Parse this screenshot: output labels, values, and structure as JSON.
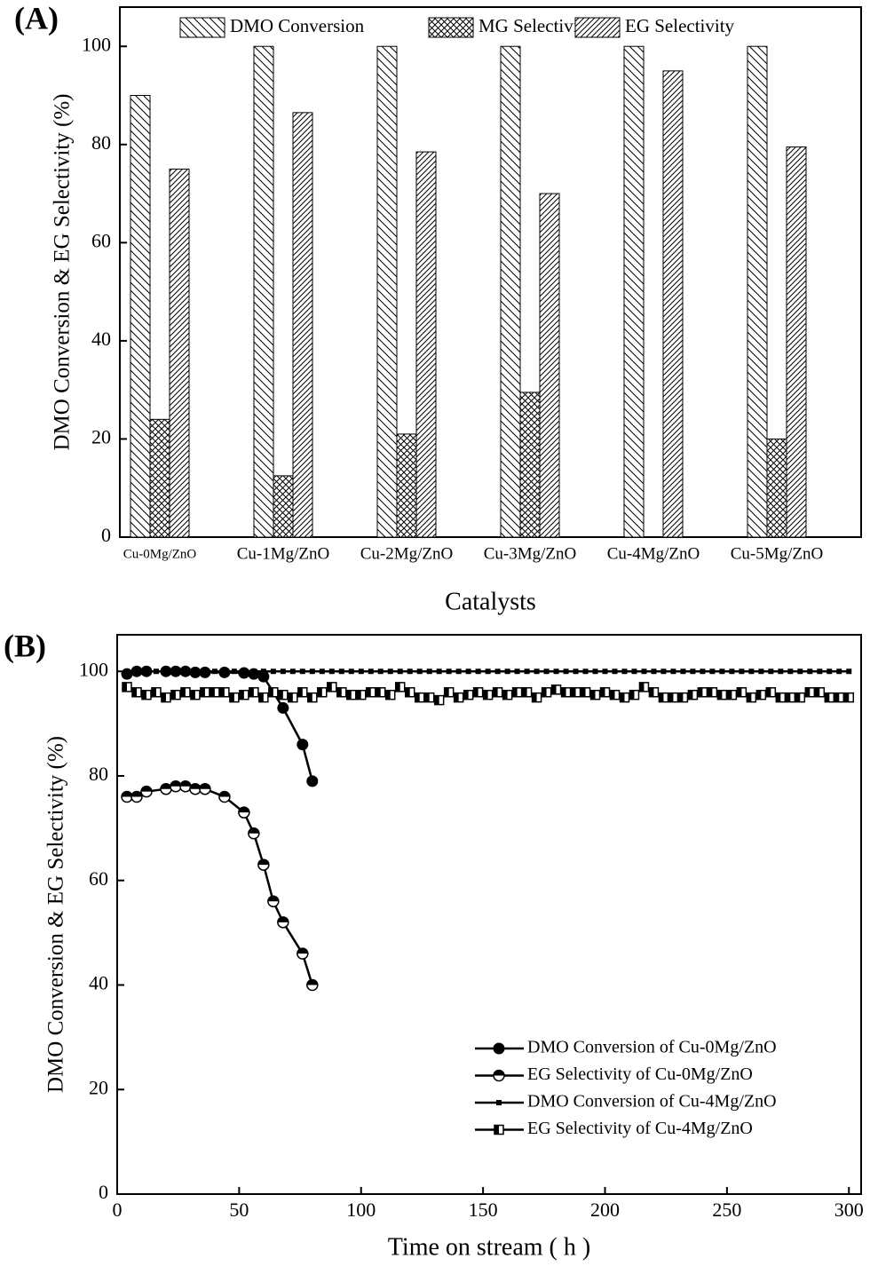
{
  "chart_data": [
    {
      "type": "bar",
      "panel_label": "(A)",
      "ylabel": "DMO Conversion & EG Selectivity (%)",
      "xlabel": "Catalysts",
      "categories": [
        "Cu-0Mg/ZnO",
        "Cu-1Mg/ZnO",
        "Cu-2Mg/ZnO",
        "Cu-3Mg/ZnO",
        "Cu-4Mg/ZnO",
        "Cu-5Mg/ZnO"
      ],
      "series": [
        {
          "name": "DMO Conversion",
          "color": "#000000",
          "hatch": "backslash",
          "values": [
            90,
            100,
            100,
            100,
            100,
            100
          ]
        },
        {
          "name": "MG Selectivity",
          "color": "#000000",
          "hatch": "cross",
          "values": [
            24,
            12.5,
            21,
            29.5,
            null,
            20
          ]
        },
        {
          "name": "EG Selectivity",
          "color": "#000000",
          "hatch": "slash",
          "values": [
            75,
            86.5,
            78.5,
            70,
            95,
            79.5
          ]
        }
      ],
      "ylim": [
        0,
        108
      ],
      "yticks": [
        0,
        20,
        40,
        60,
        80,
        100
      ],
      "legend": "upper center"
    },
    {
      "type": "line",
      "panel_label": "(B)",
      "ylabel": "DMO Conversion & EG Selectivity (%)",
      "xlabel": "Time on stream ( h )",
      "series": [
        {
          "name": "DMO Conversion of Cu-0Mg/ZnO",
          "color": "#000000",
          "marker": "filled-circle",
          "x": [
            4,
            8,
            12,
            20,
            24,
            28,
            32,
            36,
            44,
            52,
            56,
            60,
            68,
            76,
            80
          ],
          "values": [
            99.5,
            100,
            100,
            100,
            100,
            100,
            99.8,
            99.8,
            99.8,
            99.7,
            99.5,
            99,
            93,
            86,
            79
          ]
        },
        {
          "name": "EG Selectivity of Cu-0Mg/ZnO",
          "color": "#000000",
          "marker": "half-circle",
          "x": [
            4,
            8,
            12,
            20,
            24,
            28,
            32,
            36,
            44,
            52,
            56,
            60,
            64,
            68,
            76,
            80
          ],
          "values": [
            76,
            76,
            77,
            77.5,
            78,
            78,
            77.5,
            77.5,
            76,
            73,
            69,
            63,
            56,
            52,
            46,
            40
          ]
        },
        {
          "name": "DMO Conversion of Cu-4Mg/ZnO",
          "color": "#000000",
          "marker": "square",
          "x": [
            4,
            8,
            12,
            16,
            20,
            24,
            28,
            32,
            36,
            40,
            44,
            48,
            52,
            56,
            60,
            64,
            68,
            72,
            76,
            80,
            84,
            88,
            92,
            96,
            100,
            104,
            108,
            112,
            116,
            120,
            124,
            128,
            132,
            136,
            140,
            144,
            148,
            152,
            156,
            160,
            164,
            168,
            172,
            176,
            180,
            184,
            188,
            192,
            196,
            200,
            204,
            208,
            212,
            216,
            220,
            224,
            228,
            232,
            236,
            240,
            244,
            248,
            252,
            256,
            260,
            264,
            268,
            272,
            276,
            280,
            284,
            288,
            292,
            296,
            300
          ],
          "values": [
            100,
            100,
            100,
            100,
            100,
            100,
            100,
            100,
            100,
            100,
            100,
            100,
            100,
            100,
            100,
            100,
            100,
            100,
            100,
            100,
            100,
            100,
            100,
            100,
            100,
            100,
            100,
            100,
            100,
            100,
            100,
            100,
            100,
            100,
            100,
            100,
            100,
            100,
            100,
            100,
            100,
            100,
            100,
            100,
            100,
            100,
            100,
            100,
            100,
            100,
            100,
            100,
            100,
            100,
            100,
            100,
            100,
            100,
            100,
            100,
            100,
            100,
            100,
            100,
            100,
            100,
            100,
            100,
            100,
            100,
            100,
            100,
            100,
            100,
            100
          ]
        },
        {
          "name": "EG Selectivity of Cu-4Mg/ZnO",
          "color": "#000000",
          "marker": "half-square",
          "x": [
            4,
            8,
            12,
            16,
            20,
            24,
            28,
            32,
            36,
            40,
            44,
            48,
            52,
            56,
            60,
            64,
            68,
            72,
            76,
            80,
            84,
            88,
            92,
            96,
            100,
            104,
            108,
            112,
            116,
            120,
            124,
            128,
            132,
            136,
            140,
            144,
            148,
            152,
            156,
            160,
            164,
            168,
            172,
            176,
            180,
            184,
            188,
            192,
            196,
            200,
            204,
            208,
            212,
            216,
            220,
            224,
            228,
            232,
            236,
            240,
            244,
            248,
            252,
            256,
            260,
            264,
            268,
            272,
            276,
            280,
            284,
            288,
            292,
            296,
            300
          ],
          "values": [
            97,
            96,
            95.5,
            96,
            95,
            95.5,
            96,
            95.5,
            96,
            96,
            96,
            95,
            95.5,
            96,
            95,
            96,
            95.5,
            95,
            96,
            95,
            96,
            97,
            96,
            95.5,
            95.5,
            96,
            96,
            95.5,
            97,
            96,
            95,
            95,
            94.5,
            96,
            95,
            95.5,
            96,
            95.5,
            96,
            95.5,
            96,
            96,
            95,
            96,
            96.5,
            96,
            96,
            96,
            95.5,
            96,
            95.5,
            95,
            95.5,
            97,
            96,
            95,
            95,
            95,
            95.5,
            96,
            96,
            95.5,
            95.5,
            96,
            95,
            95.5,
            96,
            95,
            95,
            95,
            96,
            96,
            95,
            95,
            95
          ]
        }
      ],
      "xlim": [
        0,
        305
      ],
      "xticks": [
        0,
        50,
        100,
        150,
        200,
        250,
        300
      ],
      "ylim": [
        0,
        107
      ],
      "yticks": [
        0,
        20,
        40,
        60,
        80,
        100
      ],
      "legend": "lower right"
    }
  ]
}
